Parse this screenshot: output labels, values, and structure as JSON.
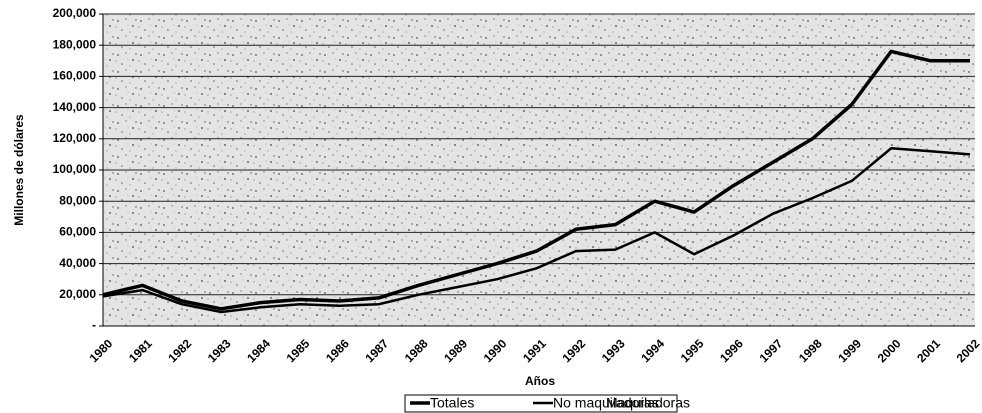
{
  "chart_data": {
    "type": "line",
    "y_label": "Millones de dólares",
    "x_label": "Años",
    "categories": [
      "1980",
      "1981",
      "1982",
      "1983",
      "1984",
      "1985",
      "1986",
      "1987",
      "1988",
      "1989",
      "1990",
      "1991",
      "1992",
      "1993",
      "1994",
      "1995",
      "1996",
      "1997",
      "1998",
      "1999",
      "2000",
      "2001",
      "2002"
    ],
    "series": [
      {
        "name": "Totales",
        "color": "#000000",
        "width": 3.5,
        "values": [
          20000,
          26000,
          16000,
          11000,
          15000,
          17000,
          16000,
          18000,
          26000,
          33000,
          40000,
          48000,
          62000,
          65000,
          80000,
          73000,
          90000,
          105000,
          120000,
          142000,
          176000,
          170000,
          170000
        ]
      },
      {
        "name": "No maquiladoras",
        "color": "#000000",
        "width": 2.5,
        "values": [
          19000,
          23000,
          14000,
          9000,
          12000,
          14000,
          13000,
          14000,
          20000,
          25000,
          30000,
          37000,
          48000,
          49000,
          60000,
          46000,
          58000,
          72000,
          82000,
          93000,
          114000,
          112000,
          110000
        ]
      },
      {
        "name": "Maquiladoras",
        "color": "#ffffff",
        "width": 2,
        "values": [
          null,
          null,
          null,
          null,
          null,
          null,
          null,
          null,
          null,
          null,
          null,
          null,
          null,
          null,
          null,
          null,
          null,
          null,
          null,
          null,
          null,
          null,
          null
        ]
      }
    ],
    "ylim": [
      0,
      200000
    ],
    "yticks": [
      {
        "value": 0,
        "label": "-"
      },
      {
        "value": 20000,
        "label": "20,000"
      },
      {
        "value": 40000,
        "label": "40,000"
      },
      {
        "value": 60000,
        "label": "60,000"
      },
      {
        "value": 80000,
        "label": "80,000"
      },
      {
        "value": 100000,
        "label": "100,000"
      },
      {
        "value": 120000,
        "label": "120,000"
      },
      {
        "value": 140000,
        "label": "140,000"
      },
      {
        "value": 160000,
        "label": "160,000"
      },
      {
        "value": 180000,
        "label": "180,000"
      },
      {
        "value": 200000,
        "label": "200,000"
      }
    ],
    "grid": true
  }
}
